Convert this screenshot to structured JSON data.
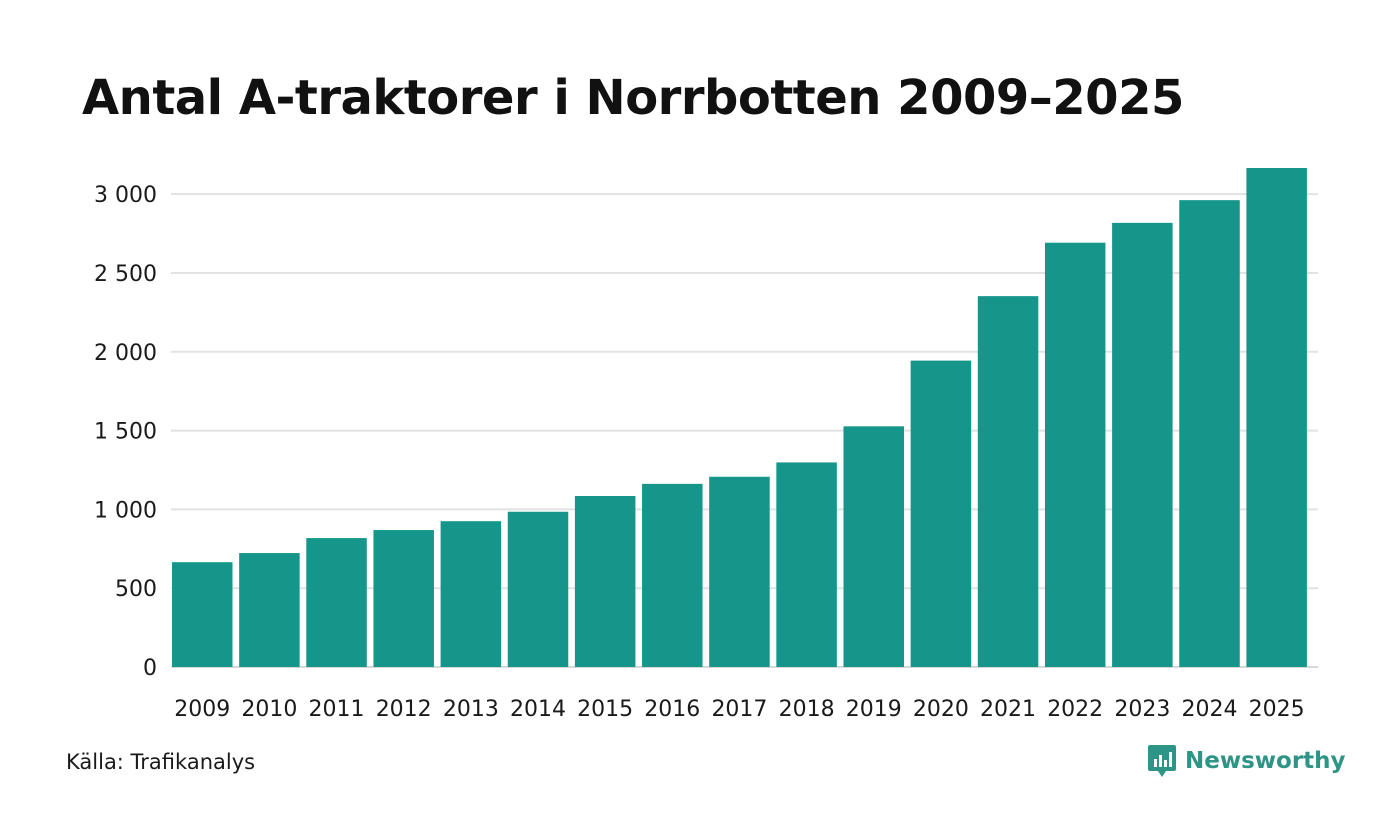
{
  "colors": {
    "bar": "#16968a",
    "grid": "#e2e2e2",
    "brand": "#2e9486"
  },
  "footer": {
    "source": "Källa: Trafikanalys",
    "brand_name": "Newsworthy",
    "brand_icon": "newsworthy-logo-icon"
  },
  "chart_data": {
    "type": "bar",
    "title": "Antal A-traktorer i Norrbotten 2009–2025",
    "xlabel": "",
    "ylabel": "",
    "categories": [
      "2009",
      "2010",
      "2011",
      "2012",
      "2013",
      "2014",
      "2015",
      "2016",
      "2017",
      "2018",
      "2019",
      "2020",
      "2021",
      "2022",
      "2023",
      "2024",
      "2025"
    ],
    "values": [
      665,
      723,
      818,
      869,
      925,
      985,
      1085,
      1162,
      1207,
      1298,
      1527,
      1944,
      2353,
      2692,
      2818,
      2962,
      3166
    ],
    "ylim": [
      0,
      3166
    ],
    "yticks": [
      0,
      500,
      1000,
      1500,
      2000,
      2500,
      3000
    ],
    "ytick_labels": [
      "0",
      "500",
      "1 000",
      "1 500",
      "2 000",
      "2 500",
      "3 000"
    ],
    "grid": true,
    "legend": "none"
  }
}
